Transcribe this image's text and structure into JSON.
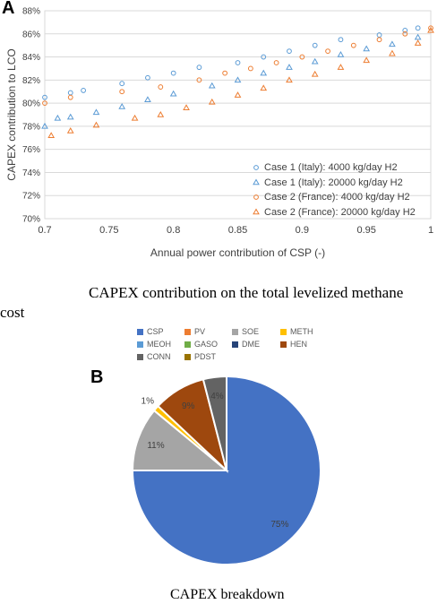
{
  "panels": {
    "a": {
      "letter": "A",
      "caption_line1": "CAPEX contribution on the total levelized methane",
      "caption_line2": "cost"
    },
    "b": {
      "letter": "B",
      "caption": "CAPEX breakdown"
    }
  },
  "chart_data": [
    {
      "type": "scatter",
      "ylabel": "CAPEX contribution to LCO",
      "xlabel": "Annual power contribution of CSP (-)",
      "xlim": [
        0.7,
        1
      ],
      "ylim": [
        0.7,
        0.88
      ],
      "x_ticks": [
        "0.7",
        "0.75",
        "0.8",
        "0.85",
        "0.9",
        "0.95",
        "1"
      ],
      "y_ticks": [
        "70%",
        "72%",
        "74%",
        "76%",
        "78%",
        "80%",
        "82%",
        "84%",
        "86%",
        "88%"
      ],
      "grid": true,
      "legend_position": "bottom-right",
      "series": [
        {
          "name": "Case 1 (Italy): 4000 kg/day H2",
          "marker": "circle",
          "color": "#5b9bd5",
          "x": [
            0.7,
            0.72,
            0.73,
            0.76,
            0.78,
            0.8,
            0.82,
            0.85,
            0.87,
            0.89,
            0.91,
            0.93,
            0.96,
            0.98,
            0.99
          ],
          "y": [
            0.805,
            0.809,
            0.811,
            0.817,
            0.822,
            0.826,
            0.831,
            0.835,
            0.84,
            0.845,
            0.85,
            0.855,
            0.859,
            0.863,
            0.865
          ]
        },
        {
          "name": "Case 1 (Italy): 20000 kg/day H2",
          "marker": "triangle",
          "color": "#5b9bd5",
          "x": [
            0.7,
            0.71,
            0.72,
            0.74,
            0.76,
            0.78,
            0.8,
            0.83,
            0.85,
            0.87,
            0.89,
            0.91,
            0.93,
            0.95,
            0.97,
            0.99
          ],
          "y": [
            0.78,
            0.787,
            0.788,
            0.792,
            0.797,
            0.803,
            0.808,
            0.815,
            0.82,
            0.826,
            0.831,
            0.836,
            0.842,
            0.847,
            0.851,
            0.857
          ]
        },
        {
          "name": "Case 2 (France): 4000 kg/day H2",
          "marker": "circle",
          "color": "#ed7d31",
          "x": [
            0.7,
            0.72,
            0.76,
            0.79,
            0.82,
            0.84,
            0.86,
            0.88,
            0.9,
            0.92,
            0.94,
            0.96,
            0.98,
            1.0
          ],
          "y": [
            0.8,
            0.805,
            0.81,
            0.814,
            0.82,
            0.826,
            0.83,
            0.835,
            0.84,
            0.845,
            0.85,
            0.855,
            0.86,
            0.865
          ]
        },
        {
          "name": "Case 2 (France): 20000 kg/day H2",
          "marker": "triangle",
          "color": "#ed7d31",
          "x": [
            0.705,
            0.72,
            0.74,
            0.77,
            0.79,
            0.81,
            0.83,
            0.85,
            0.87,
            0.89,
            0.91,
            0.93,
            0.95,
            0.97,
            0.99,
            1.0
          ],
          "y": [
            0.772,
            0.776,
            0.781,
            0.787,
            0.79,
            0.796,
            0.801,
            0.807,
            0.813,
            0.82,
            0.825,
            0.831,
            0.837,
            0.843,
            0.852,
            0.863
          ]
        }
      ]
    },
    {
      "type": "pie",
      "legend_position": "top",
      "slices": [
        {
          "label": "CSP",
          "value": 75,
          "color": "#4472c4",
          "data_label": "75%"
        },
        {
          "label": "PV",
          "value": 0,
          "color": "#ed7d31",
          "data_label": ""
        },
        {
          "label": "SOE",
          "value": 11,
          "color": "#a5a5a5",
          "data_label": "11%"
        },
        {
          "label": "METH",
          "value": 1,
          "color": "#ffc000",
          "data_label": "1%"
        },
        {
          "label": "MEOH",
          "value": 0,
          "color": "#5b9bd5",
          "data_label": ""
        },
        {
          "label": "GASO",
          "value": 0,
          "color": "#70ad47",
          "data_label": ""
        },
        {
          "label": "DME",
          "value": 0,
          "color": "#264478",
          "data_label": ""
        },
        {
          "label": "HEN",
          "value": 9,
          "color": "#9e480e",
          "data_label": "9%"
        },
        {
          "label": "CONN",
          "value": 4,
          "color": "#636363",
          "data_label": "4%"
        },
        {
          "label": "PDST",
          "value": 0,
          "color": "#997300",
          "data_label": ""
        }
      ]
    }
  ]
}
